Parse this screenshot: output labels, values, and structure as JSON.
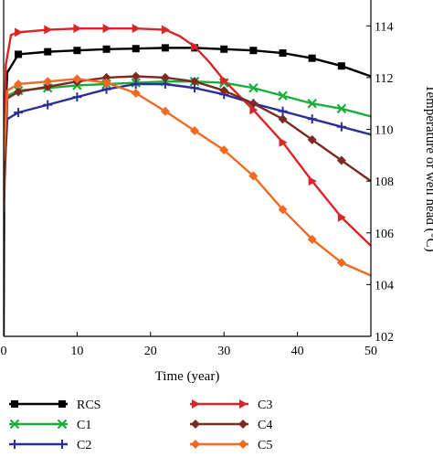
{
  "chart_data": {
    "type": "line",
    "xlabel": "Time (year)",
    "ylabel": "Temperature of well head (°C)",
    "xlim": [
      0,
      50
    ],
    "ylim": [
      102,
      115
    ],
    "xticks": [
      "0",
      "10",
      "20",
      "30",
      "40",
      "50"
    ],
    "yticks": [
      "102",
      "104",
      "106",
      "108",
      "110",
      "112",
      "114"
    ],
    "grid": false,
    "legend_position": "bottom",
    "series": [
      {
        "name": "RCS",
        "color": "#000000",
        "marker": "square",
        "points": [
          [
            0,
            102.0
          ],
          [
            0.1,
            109.8
          ],
          [
            0.5,
            112.2
          ],
          [
            2,
            112.9
          ],
          [
            6,
            113.0
          ],
          [
            10,
            113.05
          ],
          [
            14,
            113.1
          ],
          [
            18,
            113.12
          ],
          [
            22,
            113.15
          ],
          [
            26,
            113.15
          ],
          [
            30,
            113.1
          ],
          [
            34,
            113.05
          ],
          [
            38,
            112.95
          ],
          [
            42,
            112.75
          ],
          [
            46,
            112.45
          ],
          [
            50,
            112.05
          ]
        ],
        "marker_x": [
          2,
          6,
          10,
          14,
          18,
          22,
          26,
          30,
          34,
          38,
          42,
          46
        ]
      },
      {
        "name": "C1",
        "color": "#1aad3c",
        "marker": "x",
        "points": [
          [
            0,
            108.4
          ],
          [
            0.5,
            111.3
          ],
          [
            2,
            111.5
          ],
          [
            6,
            111.6
          ],
          [
            10,
            111.7
          ],
          [
            14,
            111.75
          ],
          [
            18,
            111.8
          ],
          [
            22,
            111.85
          ],
          [
            26,
            111.85
          ],
          [
            30,
            111.8
          ],
          [
            34,
            111.6
          ],
          [
            38,
            111.3
          ],
          [
            42,
            111.0
          ],
          [
            46,
            110.8
          ],
          [
            50,
            110.5
          ]
        ],
        "marker_x": [
          2,
          6,
          10,
          14,
          18,
          22,
          26,
          30,
          34,
          38,
          42,
          46
        ]
      },
      {
        "name": "C2",
        "color": "#2a2e96",
        "marker": "plus",
        "points": [
          [
            0,
            107.7
          ],
          [
            0.5,
            110.4
          ],
          [
            2,
            110.65
          ],
          [
            6,
            110.95
          ],
          [
            10,
            111.25
          ],
          [
            14,
            111.55
          ],
          [
            18,
            111.75
          ],
          [
            22,
            111.75
          ],
          [
            26,
            111.6
          ],
          [
            30,
            111.35
          ],
          [
            34,
            111.0
          ],
          [
            38,
            110.7
          ],
          [
            42,
            110.4
          ],
          [
            46,
            110.1
          ],
          [
            50,
            109.8
          ]
        ],
        "marker_x": [
          2,
          6,
          10,
          14,
          18,
          22,
          26,
          30,
          34,
          38,
          42,
          46
        ]
      },
      {
        "name": "C3",
        "color": "#d92527",
        "marker": "triangle-right",
        "points": [
          [
            0,
            108.5
          ],
          [
            0.3,
            112.5
          ],
          [
            1,
            113.65
          ],
          [
            2,
            113.75
          ],
          [
            6,
            113.85
          ],
          [
            10,
            113.9
          ],
          [
            14,
            113.9
          ],
          [
            18,
            113.9
          ],
          [
            22,
            113.85
          ],
          [
            24,
            113.6
          ],
          [
            26,
            113.2
          ],
          [
            28,
            112.6
          ],
          [
            30,
            111.9
          ],
          [
            34,
            110.75
          ],
          [
            38,
            109.5
          ],
          [
            42,
            108.0
          ],
          [
            46,
            106.6
          ],
          [
            50,
            105.5
          ]
        ],
        "marker_x": [
          2,
          6,
          10,
          14,
          18,
          22,
          26,
          30,
          34,
          38,
          42,
          46
        ]
      },
      {
        "name": "C4",
        "color": "#7b2b20",
        "marker": "diamond",
        "points": [
          [
            0,
            106.8
          ],
          [
            0.5,
            111.2
          ],
          [
            2,
            111.45
          ],
          [
            6,
            111.65
          ],
          [
            10,
            111.85
          ],
          [
            14,
            112.0
          ],
          [
            18,
            112.05
          ],
          [
            22,
            112.0
          ],
          [
            26,
            111.85
          ],
          [
            30,
            111.5
          ],
          [
            34,
            111.0
          ],
          [
            38,
            110.4
          ],
          [
            42,
            109.6
          ],
          [
            46,
            108.8
          ],
          [
            50,
            108.0
          ]
        ],
        "marker_x": [
          2,
          6,
          10,
          14,
          18,
          22,
          26,
          30,
          34,
          38,
          42,
          46
        ]
      },
      {
        "name": "C5",
        "color": "#f26a21",
        "marker": "diamond",
        "points": [
          [
            0,
            108.8
          ],
          [
            0.5,
            111.5
          ],
          [
            2,
            111.75
          ],
          [
            6,
            111.85
          ],
          [
            10,
            111.95
          ],
          [
            14,
            111.8
          ],
          [
            18,
            111.4
          ],
          [
            22,
            110.7
          ],
          [
            26,
            109.95
          ],
          [
            30,
            109.2
          ],
          [
            34,
            108.2
          ],
          [
            38,
            106.9
          ],
          [
            42,
            105.75
          ],
          [
            46,
            104.85
          ],
          [
            50,
            104.35
          ]
        ],
        "marker_x": [
          2,
          6,
          10,
          14,
          18,
          22,
          26,
          30,
          34,
          38,
          42,
          46
        ]
      }
    ]
  }
}
